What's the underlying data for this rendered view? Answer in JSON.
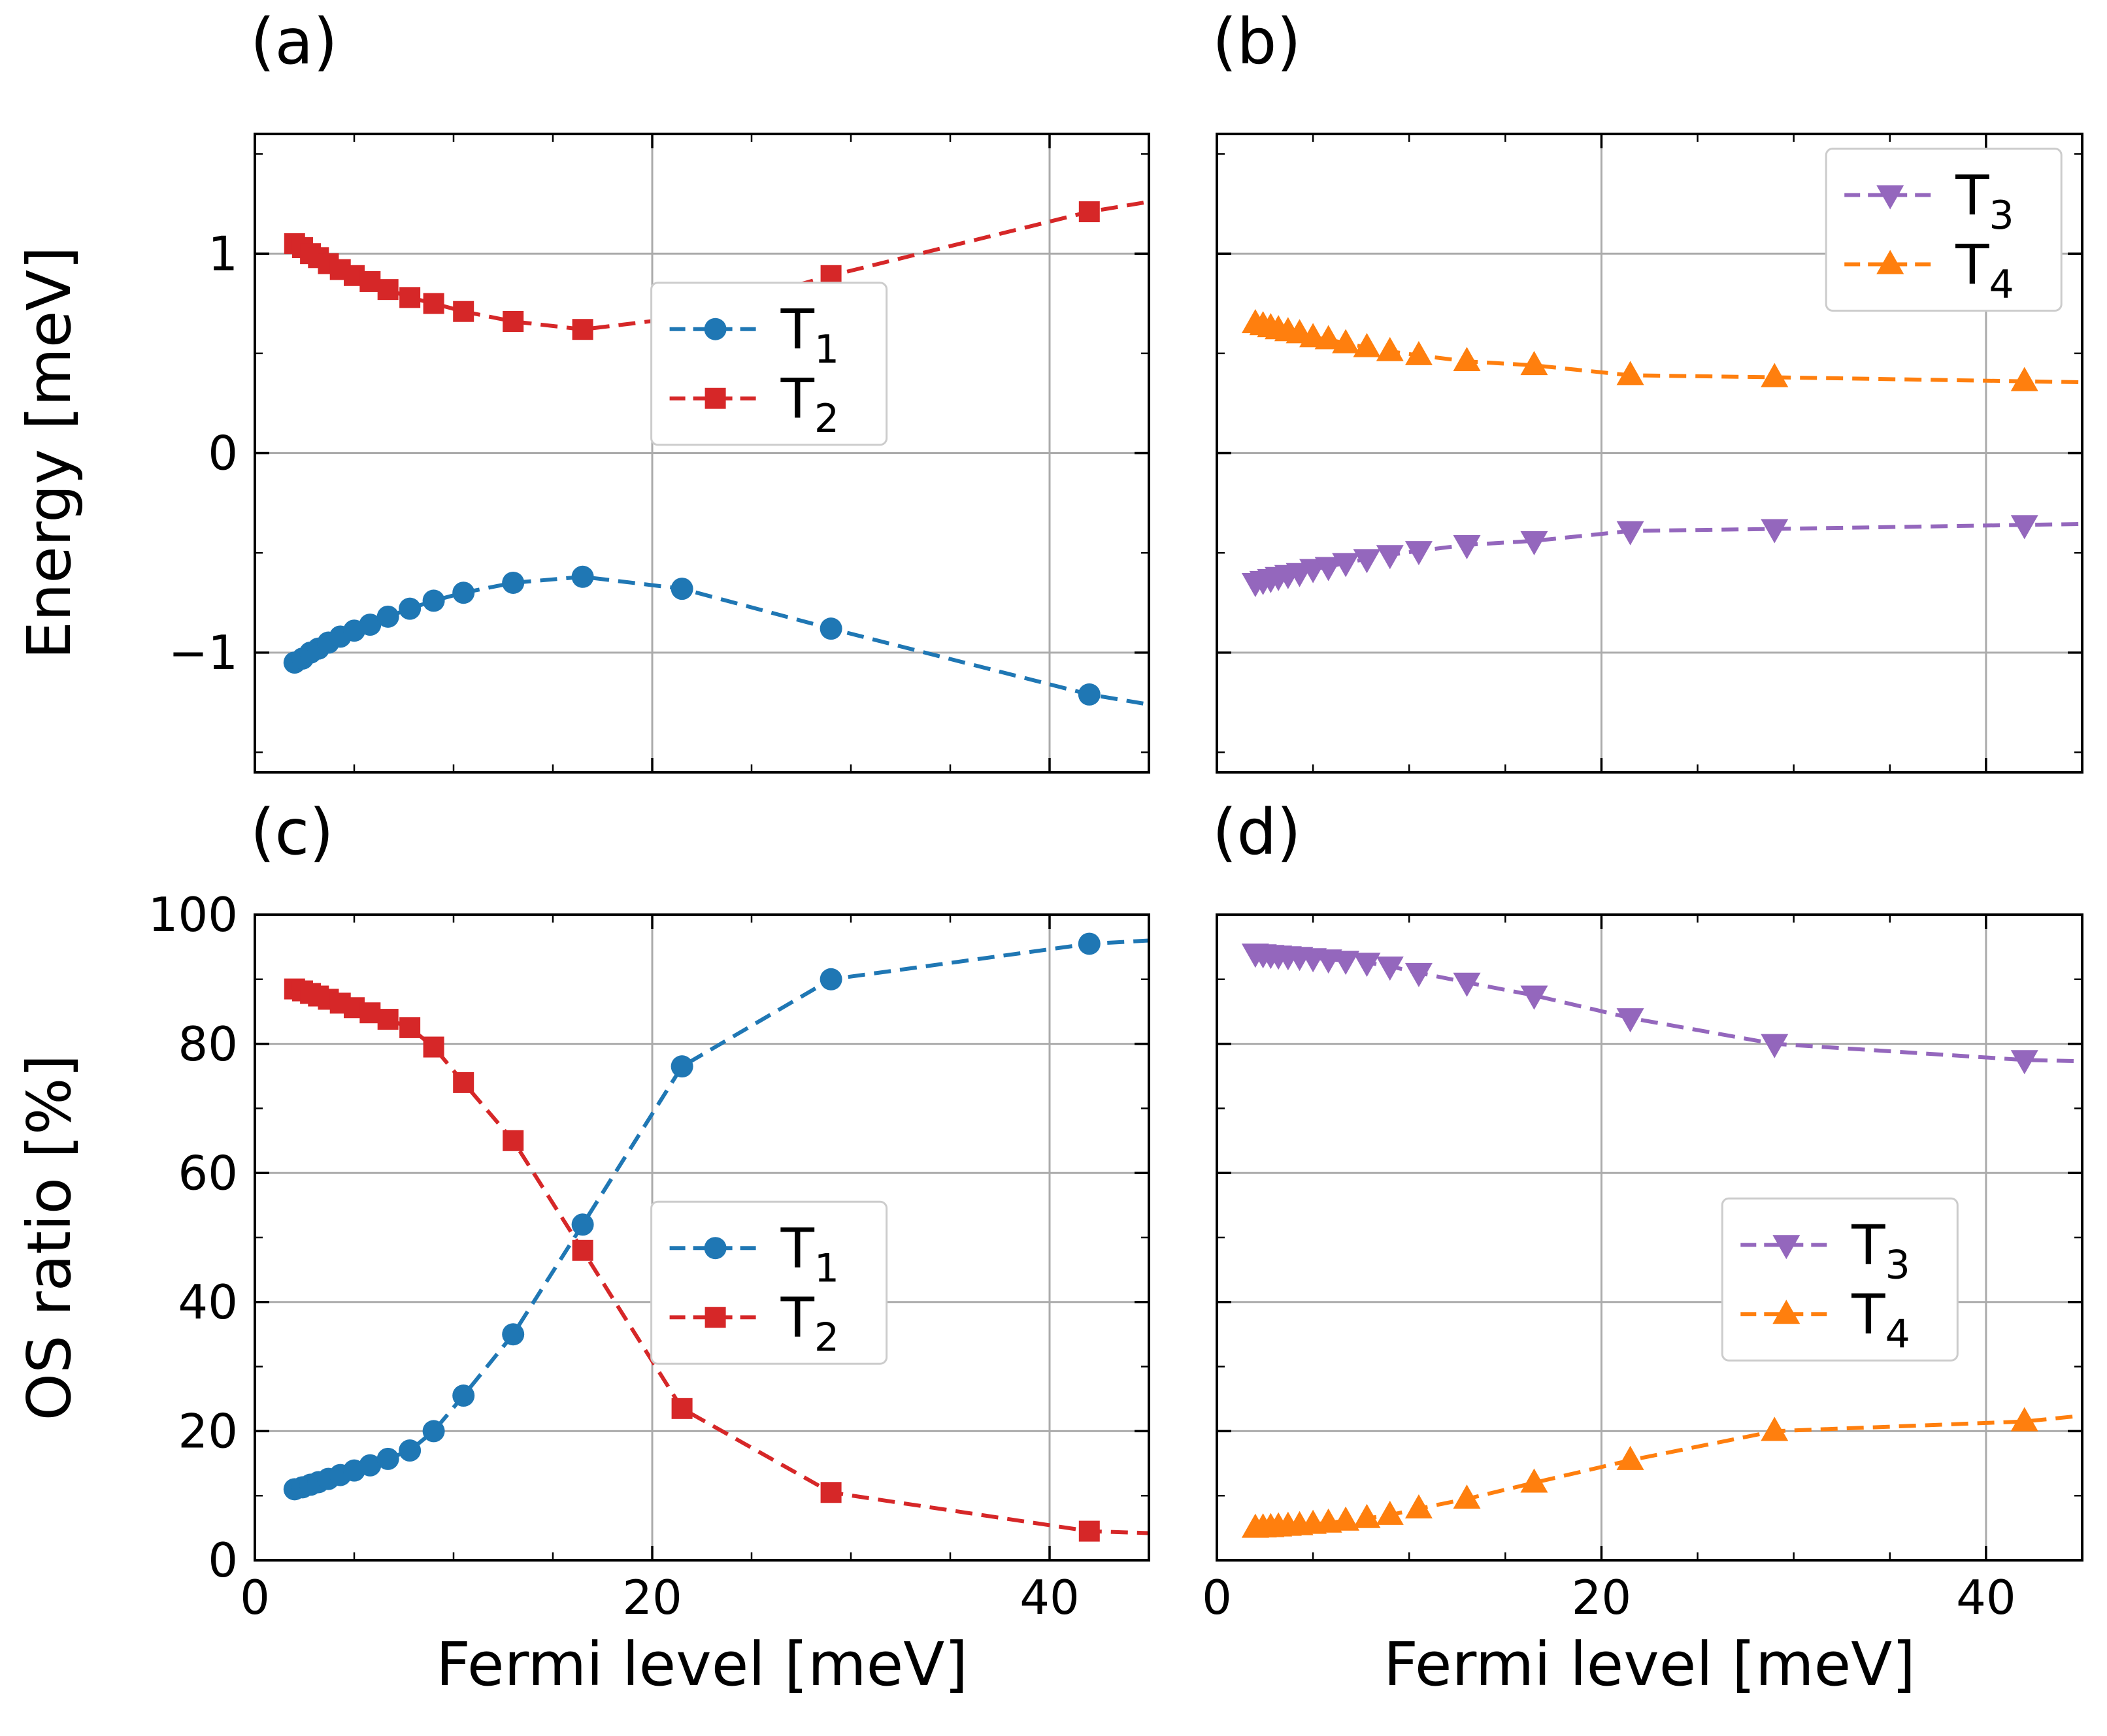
{
  "figure": {
    "background": "#ffffff"
  },
  "colors": {
    "T1": "#1f77b4",
    "T2": "#d62728",
    "T3": "#9467bd",
    "T4": "#ff7f0e",
    "grid": "#ababab",
    "axis": "#000000",
    "legend_border": "#cccccc"
  },
  "chart_data": [
    {
      "id": "a",
      "panel_label": "(a)",
      "type": "line",
      "xlabel": "",
      "ylabel": "Energy [meV]",
      "xlim": [
        0,
        45
      ],
      "ylim": [
        -1.6,
        1.6
      ],
      "xticks": [
        0,
        20,
        40
      ],
      "xtick_labels": [
        "0",
        "20",
        "40"
      ],
      "yticks": [
        -1,
        0,
        1
      ],
      "ytick_labels": [
        "−1",
        "0",
        "1"
      ],
      "xminor": [
        5,
        10,
        15,
        25,
        30,
        35
      ],
      "yminor": [
        -1.5,
        -0.5,
        0.5,
        1.5
      ],
      "show_xtick_labels": false,
      "show_ytick_labels": true,
      "grid": true,
      "x": [
        2.0,
        2.4,
        2.8,
        3.2,
        3.7,
        4.3,
        5.0,
        5.8,
        6.7,
        7.8,
        9.0,
        10.5,
        13.0,
        16.5,
        21.5,
        29.0,
        42.0
      ],
      "series": [
        {
          "name": "T1",
          "label": "T",
          "sub": "1",
          "color_key": "T1",
          "marker": "circle",
          "dash": true,
          "values": [
            -1.05,
            -1.03,
            -1.0,
            -0.98,
            -0.95,
            -0.92,
            -0.89,
            -0.86,
            -0.82,
            -0.78,
            -0.74,
            -0.7,
            -0.65,
            -0.62,
            -0.68,
            -0.88,
            -1.21
          ],
          "cont": [
            45,
            -1.26
          ]
        },
        {
          "name": "T2",
          "label": "T",
          "sub": "2",
          "color_key": "T2",
          "marker": "square",
          "dash": true,
          "values": [
            1.05,
            1.03,
            1.0,
            0.98,
            0.95,
            0.92,
            0.89,
            0.86,
            0.82,
            0.78,
            0.75,
            0.71,
            0.66,
            0.62,
            0.68,
            0.89,
            1.21
          ],
          "cont": [
            45,
            1.26
          ]
        }
      ],
      "legend": {
        "anchor": [
          0.575,
          0.36
        ],
        "entries": [
          "T1",
          "T2"
        ]
      }
    },
    {
      "id": "b",
      "panel_label": "(b)",
      "type": "line",
      "xlabel": "",
      "ylabel": "",
      "xlim": [
        0,
        45
      ],
      "ylim": [
        -1.6,
        1.6
      ],
      "xticks": [
        0,
        20,
        40
      ],
      "xtick_labels": [
        "0",
        "20",
        "40"
      ],
      "yticks": [
        -1,
        0,
        1
      ],
      "ytick_labels": [
        "−1",
        "0",
        "1"
      ],
      "xminor": [
        5,
        10,
        15,
        25,
        30,
        35
      ],
      "yminor": [
        -1.5,
        -0.5,
        0.5,
        1.5
      ],
      "show_xtick_labels": false,
      "show_ytick_labels": false,
      "grid": true,
      "x": [
        2.0,
        2.4,
        2.8,
        3.2,
        3.7,
        4.3,
        5.0,
        5.8,
        6.7,
        7.8,
        9.0,
        10.5,
        13.0,
        16.5,
        21.5,
        29.0,
        42.0
      ],
      "series": [
        {
          "name": "T3",
          "label": "T",
          "sub": "3",
          "color_key": "T3",
          "marker": "triangle-down",
          "dash": true,
          "values": [
            -0.65,
            -0.64,
            -0.63,
            -0.62,
            -0.61,
            -0.6,
            -0.58,
            -0.57,
            -0.55,
            -0.53,
            -0.51,
            -0.49,
            -0.46,
            -0.44,
            -0.39,
            -0.38,
            -0.36
          ],
          "cont": [
            45,
            -0.355
          ]
        },
        {
          "name": "T4",
          "label": "T",
          "sub": "4",
          "color_key": "T4",
          "marker": "triangle-up",
          "dash": true,
          "values": [
            0.65,
            0.64,
            0.63,
            0.62,
            0.61,
            0.6,
            0.58,
            0.57,
            0.55,
            0.53,
            0.51,
            0.49,
            0.46,
            0.44,
            0.39,
            0.38,
            0.36
          ],
          "cont": [
            45,
            0.355
          ]
        }
      ],
      "legend": {
        "anchor": [
          0.84,
          0.15
        ],
        "entries": [
          "T3",
          "T4"
        ]
      }
    },
    {
      "id": "c",
      "panel_label": "(c)",
      "type": "line",
      "xlabel": "Fermi level [meV]",
      "ylabel": "OS ratio [%]",
      "xlim": [
        0,
        45
      ],
      "ylim": [
        0,
        100
      ],
      "xticks": [
        0,
        20,
        40
      ],
      "xtick_labels": [
        "0",
        "20",
        "40"
      ],
      "yticks": [
        0,
        20,
        40,
        60,
        80,
        100
      ],
      "ytick_labels": [
        "0",
        "20",
        "40",
        "60",
        "80",
        "100"
      ],
      "xminor": [
        5,
        10,
        15,
        25,
        30,
        35
      ],
      "yminor": [
        10,
        30,
        50,
        70,
        90
      ],
      "show_xtick_labels": true,
      "show_ytick_labels": true,
      "grid": true,
      "x": [
        2.0,
        2.4,
        2.8,
        3.2,
        3.7,
        4.3,
        5.0,
        5.8,
        6.7,
        7.8,
        9.0,
        10.5,
        13.0,
        16.5,
        21.5,
        29.0,
        42.0
      ],
      "series": [
        {
          "name": "T1",
          "label": "T",
          "sub": "1",
          "color_key": "T1",
          "marker": "circle",
          "dash": true,
          "values": [
            11.0,
            11.3,
            11.7,
            12.1,
            12.6,
            13.2,
            13.9,
            14.7,
            15.7,
            17.0,
            20.0,
            25.5,
            35.0,
            52.0,
            76.5,
            90.0,
            95.5
          ],
          "cont": [
            45,
            96.0
          ]
        },
        {
          "name": "T2",
          "label": "T",
          "sub": "2",
          "color_key": "T2",
          "marker": "square",
          "dash": true,
          "values": [
            88.5,
            88.2,
            87.8,
            87.4,
            86.9,
            86.3,
            85.6,
            84.8,
            83.8,
            82.5,
            79.5,
            74.0,
            65.0,
            48.0,
            23.5,
            10.5,
            4.5
          ],
          "cont": [
            45,
            4.2
          ]
        }
      ],
      "legend": {
        "anchor": [
          0.575,
          0.57
        ],
        "entries": [
          "T1",
          "T2"
        ]
      }
    },
    {
      "id": "d",
      "panel_label": "(d)",
      "type": "line",
      "xlabel": "Fermi level [meV]",
      "ylabel": "",
      "xlim": [
        0,
        45
      ],
      "ylim": [
        0,
        100
      ],
      "xticks": [
        0,
        20,
        40
      ],
      "xtick_labels": [
        "0",
        "20",
        "40"
      ],
      "yticks": [
        0,
        20,
        40,
        60,
        80,
        100
      ],
      "ytick_labels": [
        "0",
        "20",
        "40",
        "60",
        "80",
        "100"
      ],
      "xminor": [
        5,
        10,
        15,
        25,
        30,
        35
      ],
      "yminor": [
        10,
        30,
        50,
        70,
        90
      ],
      "show_xtick_labels": true,
      "show_ytick_labels": false,
      "grid": true,
      "x": [
        2.0,
        2.4,
        2.8,
        3.2,
        3.7,
        4.3,
        5.0,
        5.8,
        6.7,
        7.8,
        9.0,
        10.5,
        13.0,
        16.5,
        21.5,
        29.0,
        42.0
      ],
      "series": [
        {
          "name": "T3",
          "label": "T",
          "sub": "3",
          "color_key": "T3",
          "marker": "triangle-down",
          "dash": true,
          "values": [
            94.0,
            93.9,
            93.8,
            93.7,
            93.6,
            93.5,
            93.3,
            93.1,
            92.9,
            92.6,
            92.0,
            91.0,
            89.5,
            87.5,
            84.0,
            80.0,
            77.5
          ],
          "cont": [
            45,
            77.3
          ]
        },
        {
          "name": "T4",
          "label": "T",
          "sub": "4",
          "color_key": "T4",
          "marker": "triangle-up",
          "dash": true,
          "values": [
            5.0,
            5.05,
            5.1,
            5.2,
            5.3,
            5.4,
            5.6,
            5.8,
            6.1,
            6.5,
            7.0,
            8.0,
            9.5,
            12.0,
            15.5,
            20.0,
            21.5
          ],
          "cont": [
            45,
            22.4
          ]
        }
      ],
      "legend": {
        "anchor": [
          0.72,
          0.565
        ],
        "entries": [
          "T3",
          "T4"
        ]
      }
    }
  ]
}
